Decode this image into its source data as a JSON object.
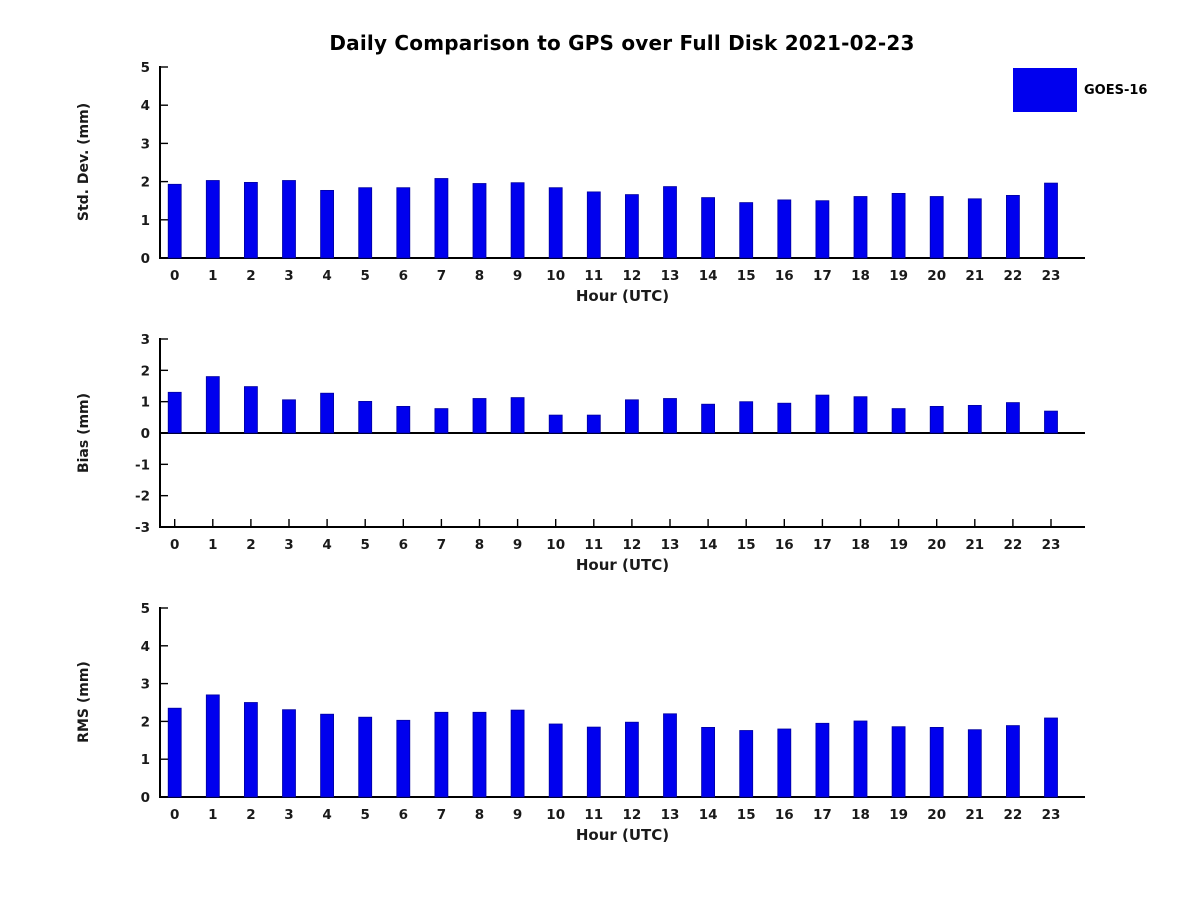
{
  "page": {
    "title": "Daily Comparison to GPS over Full Disk 2021-02-23",
    "background_color": "#ffffff",
    "axis_color": "#000000",
    "text_color": "#1a1a1a"
  },
  "legend": {
    "label": "GOES-16",
    "swatch_color": "#0000ee",
    "position": "top-right"
  },
  "chart_data": [
    {
      "type": "bar",
      "title": "",
      "ylabel": "Std. Dev. (mm)",
      "xlabel": "Hour (UTC)",
      "ylim": [
        0,
        5
      ],
      "y_ticks": [
        0,
        1,
        2,
        3,
        4,
        5
      ],
      "grid": "off",
      "categories": [
        "0",
        "1",
        "2",
        "3",
        "4",
        "5",
        "6",
        "7",
        "8",
        "9",
        "10",
        "11",
        "12",
        "13",
        "14",
        "15",
        "16",
        "17",
        "18",
        "19",
        "20",
        "21",
        "22",
        "23"
      ],
      "series": [
        {
          "name": "GOES-16",
          "color": "#0000ee",
          "values": [
            1.93,
            2.03,
            1.98,
            2.03,
            1.77,
            1.84,
            1.84,
            2.08,
            1.95,
            1.97,
            1.84,
            1.73,
            1.66,
            1.87,
            1.58,
            1.45,
            1.52,
            1.5,
            1.61,
            1.69,
            1.61,
            1.55,
            1.64,
            1.96
          ]
        }
      ]
    },
    {
      "type": "bar",
      "title": "",
      "ylabel": "Bias (mm)",
      "xlabel": "Hour (UTC)",
      "ylim": [
        -3,
        3
      ],
      "y_ticks": [
        -3,
        -2,
        -1,
        0,
        1,
        2,
        3
      ],
      "grid": "off",
      "categories": [
        "0",
        "1",
        "2",
        "3",
        "4",
        "5",
        "6",
        "7",
        "8",
        "9",
        "10",
        "11",
        "12",
        "13",
        "14",
        "15",
        "16",
        "17",
        "18",
        "19",
        "20",
        "21",
        "22",
        "23"
      ],
      "series": [
        {
          "name": "GOES-16",
          "color": "#0000ee",
          "values": [
            1.3,
            1.8,
            1.48,
            1.06,
            1.27,
            1.01,
            0.85,
            0.78,
            1.1,
            1.13,
            0.57,
            0.57,
            1.06,
            1.1,
            0.92,
            1.0,
            0.95,
            1.21,
            1.16,
            0.78,
            0.85,
            0.88,
            0.97,
            0.7
          ]
        }
      ]
    },
    {
      "type": "bar",
      "title": "",
      "ylabel": "RMS (mm)",
      "xlabel": "Hour (UTC)",
      "ylim": [
        0,
        5
      ],
      "y_ticks": [
        0,
        1,
        2,
        3,
        4,
        5
      ],
      "grid": "off",
      "categories": [
        "0",
        "1",
        "2",
        "3",
        "4",
        "5",
        "6",
        "7",
        "8",
        "9",
        "10",
        "11",
        "12",
        "13",
        "14",
        "15",
        "16",
        "17",
        "18",
        "19",
        "20",
        "21",
        "22",
        "23"
      ],
      "series": [
        {
          "name": "GOES-16",
          "color": "#0000ee",
          "values": [
            2.35,
            2.7,
            2.5,
            2.31,
            2.19,
            2.11,
            2.03,
            2.24,
            2.24,
            2.3,
            1.93,
            1.85,
            1.98,
            2.2,
            1.84,
            1.76,
            1.8,
            1.95,
            2.01,
            1.86,
            1.84,
            1.78,
            1.89,
            2.09
          ]
        }
      ]
    }
  ]
}
